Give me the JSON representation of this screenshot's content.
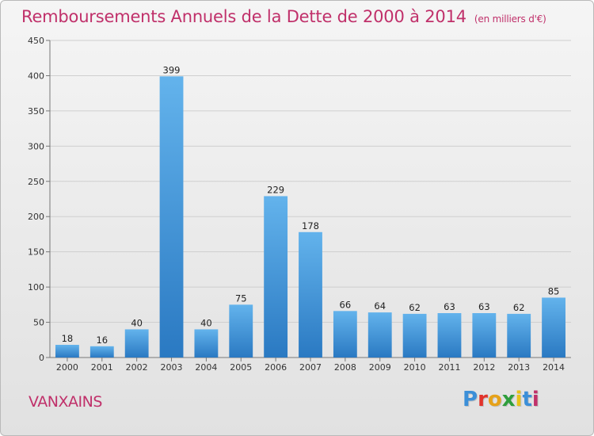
{
  "header": {
    "title": "Remboursements Annuels de la Dette de 2000 à 2014",
    "subtitle": "(en milliers d'€)"
  },
  "footer": {
    "place": "VANXAINS",
    "logo": "Proxiti"
  },
  "colors": {
    "title": "#c0306a",
    "bar_top": "#63b3ec",
    "bar_bottom": "#2a79c2",
    "logo_letters": [
      "#3b8fd8",
      "#e2332b",
      "#e6a21a",
      "#2e9e3c",
      "#e8c21a",
      "#3b8fd8",
      "#c0306a"
    ]
  },
  "chart_data": {
    "type": "bar",
    "title": "Remboursements Annuels de la Dette de 2000 à 2014",
    "subtitle": "(en milliers d'€)",
    "categories": [
      "2000",
      "2001",
      "2002",
      "2003",
      "2004",
      "2005",
      "2006",
      "2007",
      "2008",
      "2009",
      "2010",
      "2011",
      "2012",
      "2013",
      "2014"
    ],
    "values": [
      18,
      16,
      40,
      399,
      40,
      75,
      229,
      178,
      66,
      64,
      62,
      63,
      63,
      62,
      85
    ],
    "ylim": [
      0,
      450
    ],
    "yticks": [
      0,
      50,
      100,
      150,
      200,
      250,
      300,
      350,
      400,
      450
    ],
    "grid": true,
    "legend": "none",
    "data_labels": true
  }
}
